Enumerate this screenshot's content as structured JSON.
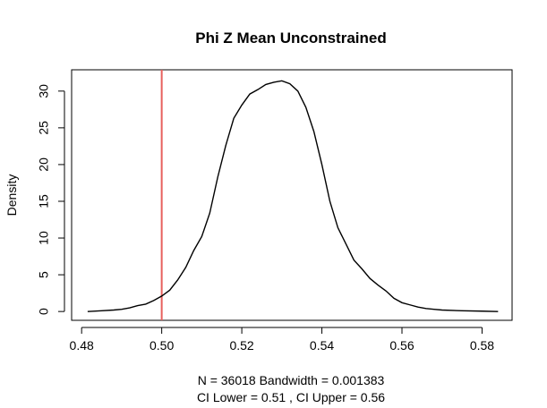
{
  "chart_data": {
    "type": "line",
    "title": "Phi Z Mean Unconstrained",
    "ylabel": "Density",
    "xlabel_lines": [
      "N = 36018   Bandwidth = 0.001383",
      "CI Lower =  0.51 , CI Upper =  0.56"
    ],
    "xlim": [
      0.4775,
      0.5875
    ],
    "ylim": [
      -1.2,
      32.9
    ],
    "x_ticks": [
      0.48,
      0.5,
      0.52,
      0.54,
      0.56,
      0.58
    ],
    "x_tick_labels": [
      "0.48",
      "0.50",
      "0.52",
      "0.54",
      "0.56",
      "0.58"
    ],
    "y_ticks": [
      0,
      5,
      10,
      15,
      20,
      25,
      30
    ],
    "y_tick_labels": [
      "0",
      "5",
      "10",
      "15",
      "20",
      "25",
      "30"
    ],
    "reference_line": {
      "x": 0.5,
      "color": "#e8605d"
    },
    "line_color": "#000000",
    "grid": false,
    "series": [
      {
        "x": [
          0.4815,
          0.485,
          0.488,
          0.49,
          0.492,
          0.494,
          0.496,
          0.498,
          0.5,
          0.502,
          0.504,
          0.506,
          0.508,
          0.51,
          0.512,
          0.514,
          0.516,
          0.518,
          0.52,
          0.522,
          0.524,
          0.526,
          0.528,
          0.53,
          0.532,
          0.534,
          0.536,
          0.538,
          0.54,
          0.542,
          0.544,
          0.546,
          0.548,
          0.55,
          0.552,
          0.554,
          0.556,
          0.558,
          0.56,
          0.562,
          0.564,
          0.566,
          0.568,
          0.57,
          0.575,
          0.58,
          0.584
        ],
        "y": [
          0.0,
          0.1,
          0.2,
          0.3,
          0.5,
          0.8,
          1.0,
          1.5,
          2.1,
          2.9,
          4.3,
          6.0,
          8.3,
          10.2,
          13.4,
          18.3,
          22.6,
          26.3,
          28.1,
          29.6,
          30.2,
          30.9,
          31.2,
          31.4,
          31.0,
          30.0,
          27.8,
          24.5,
          20.0,
          15.0,
          11.4,
          9.2,
          7.0,
          5.8,
          4.5,
          3.6,
          2.8,
          1.8,
          1.2,
          0.9,
          0.6,
          0.4,
          0.3,
          0.2,
          0.1,
          0.05,
          0.0
        ]
      }
    ]
  }
}
